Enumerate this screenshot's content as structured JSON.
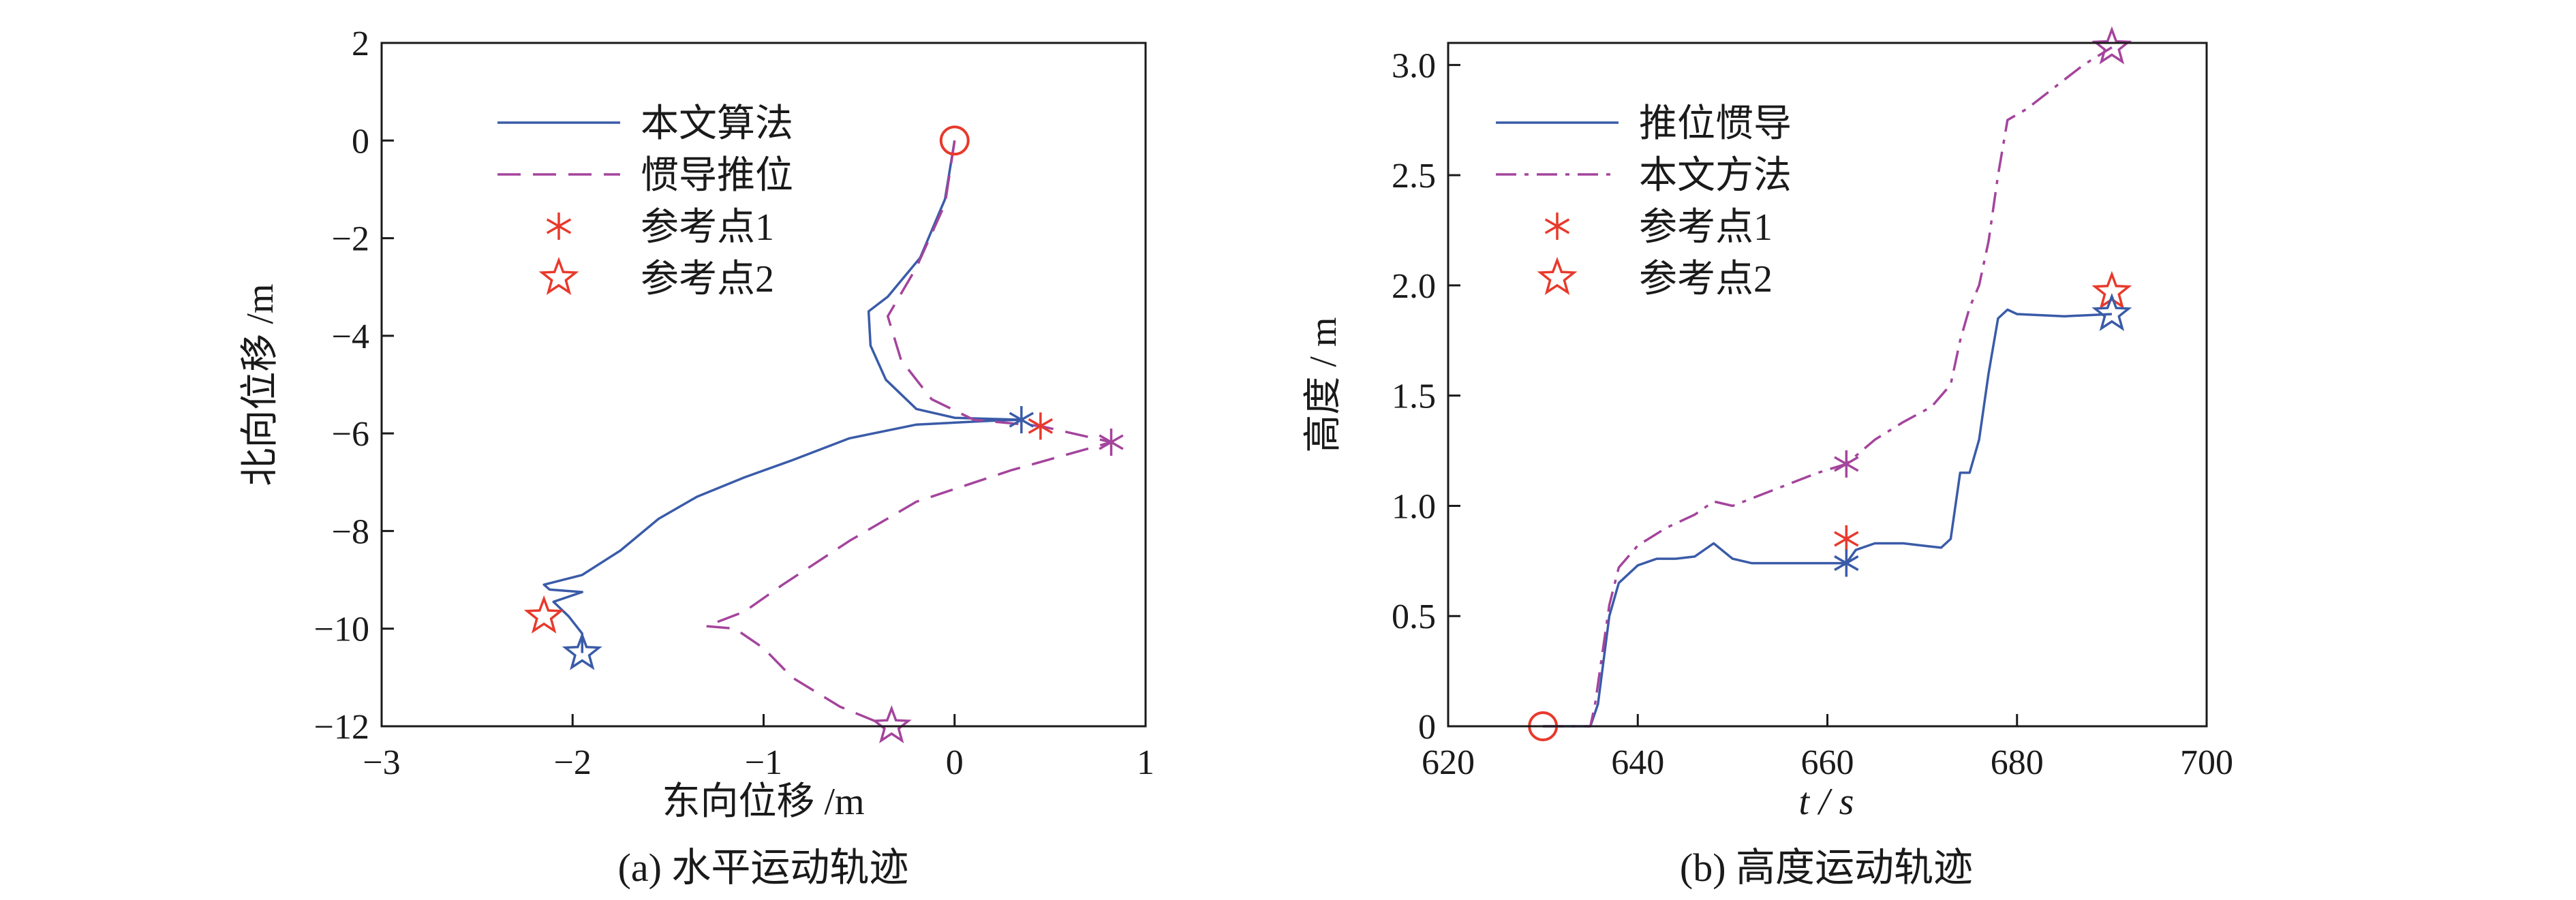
{
  "chart_data": [
    {
      "type": "line",
      "title": "",
      "caption": "(a) 水平运动轨迹",
      "xlabel": "东向位移 /m",
      "ylabel": "北向位移 /m",
      "xlim": [
        -3,
        1
      ],
      "ylim": [
        -12,
        2
      ],
      "xticks": [
        -3,
        -2,
        -1,
        0,
        1
      ],
      "xtick_labels": [
        "−3",
        "−2",
        "−1",
        "0",
        "1"
      ],
      "yticks": [
        2,
        0,
        -2,
        -4,
        -6,
        -8,
        -10,
        -12
      ],
      "ytick_labels": [
        "2",
        "0",
        "−2",
        "−4",
        "−6",
        "−8",
        "−10",
        "−12"
      ],
      "grid": false,
      "legend_position": "top-left",
      "legend": [
        {
          "label": "本文算法",
          "style": "solid-line",
          "color": "#3a5ba8"
        },
        {
          "label": "惯导推位",
          "style": "dashed-line",
          "color": "#a4449c"
        },
        {
          "label": "参考点1",
          "style": "asterisk",
          "color": "#e8392b"
        },
        {
          "label": "参考点2",
          "style": "star",
          "color": "#e8392b"
        }
      ],
      "series": [
        {
          "name": "本文算法",
          "color": "#3a5ba8",
          "dash": "solid",
          "points": [
            [
              0,
              0
            ],
            [
              -0.05,
              -1.2
            ],
            [
              -0.18,
              -2.4
            ],
            [
              -0.35,
              -3.2
            ],
            [
              -0.45,
              -3.5
            ],
            [
              -0.44,
              -4.2
            ],
            [
              -0.36,
              -4.9
            ],
            [
              -0.2,
              -5.5
            ],
            [
              0.0,
              -5.68
            ],
            [
              0.35,
              -5.72
            ],
            [
              0.2,
              -5.74
            ],
            [
              -0.2,
              -5.82
            ],
            [
              -0.55,
              -6.1
            ],
            [
              -0.85,
              -6.55
            ],
            [
              -1.1,
              -6.9
            ],
            [
              -1.35,
              -7.3
            ],
            [
              -1.55,
              -7.75
            ],
            [
              -1.75,
              -8.4
            ],
            [
              -1.95,
              -8.9
            ],
            [
              -2.15,
              -9.1
            ],
            [
              -2.12,
              -9.2
            ],
            [
              -1.95,
              -9.25
            ],
            [
              -2.1,
              -9.45
            ],
            [
              -2.02,
              -9.75
            ],
            [
              -1.95,
              -10.1
            ],
            [
              -1.95,
              -10.5
            ]
          ]
        },
        {
          "name": "惯导推位",
          "color": "#a4449c",
          "dash": "dashed",
          "points": [
            [
              0,
              0
            ],
            [
              -0.05,
              -1.3
            ],
            [
              -0.2,
              -2.6
            ],
            [
              -0.35,
              -3.6
            ],
            [
              -0.28,
              -4.5
            ],
            [
              -0.12,
              -5.3
            ],
            [
              0.1,
              -5.72
            ],
            [
              0.45,
              -5.85
            ],
            [
              0.82,
              -6.18
            ],
            [
              0.3,
              -6.75
            ],
            [
              -0.2,
              -7.4
            ],
            [
              -0.55,
              -8.2
            ],
            [
              -0.9,
              -9.1
            ],
            [
              -1.1,
              -9.65
            ],
            [
              -1.3,
              -9.95
            ],
            [
              -1.15,
              -10.0
            ],
            [
              -1.0,
              -10.4
            ],
            [
              -0.85,
              -11.0
            ],
            [
              -0.6,
              -11.6
            ],
            [
              -0.35,
              -12.0
            ]
          ]
        }
      ],
      "markers": [
        {
          "shape": "circle",
          "x": 0.0,
          "y": 0.0,
          "color": "#e8392b"
        },
        {
          "shape": "asterisk",
          "x": 0.35,
          "y": -5.72,
          "color": "#3a5ba8"
        },
        {
          "shape": "asterisk",
          "x": 0.45,
          "y": -5.85,
          "color": "#e8392b"
        },
        {
          "shape": "asterisk",
          "x": 0.82,
          "y": -6.18,
          "color": "#a4449c"
        },
        {
          "shape": "star",
          "x": -2.15,
          "y": -9.75,
          "color": "#e8392b"
        },
        {
          "shape": "star",
          "x": -1.95,
          "y": -10.5,
          "color": "#3a5ba8"
        },
        {
          "shape": "star",
          "x": -0.33,
          "y": -12.0,
          "color": "#a4449c"
        }
      ]
    },
    {
      "type": "line",
      "title": "",
      "caption": "(b) 高度运动轨迹",
      "xlabel": "t / s",
      "ylabel": "高度 / m",
      "xlim": [
        620,
        700
      ],
      "ylim": [
        0,
        3.1
      ],
      "xticks": [
        620,
        640,
        660,
        680,
        700
      ],
      "xtick_labels": [
        "620",
        "640",
        "660",
        "680",
        "700"
      ],
      "yticks": [
        0,
        0.5,
        1.0,
        1.5,
        2.0,
        2.5,
        3.0
      ],
      "ytick_labels": [
        "0",
        "0.5",
        "1.0",
        "1.5",
        "2.0",
        "2.5",
        "3.0"
      ],
      "grid": false,
      "legend_position": "top-left",
      "legend": [
        {
          "label": "推位惯导",
          "style": "solid-line",
          "color": "#3a5ba8"
        },
        {
          "label": "本文方法",
          "style": "dashdot-line",
          "color": "#a4449c"
        },
        {
          "label": "参考点1",
          "style": "asterisk",
          "color": "#e8392b"
        },
        {
          "label": "参考点2",
          "style": "star",
          "color": "#e8392b"
        }
      ],
      "series": [
        {
          "name": "推位惯导",
          "color": "#3a5ba8",
          "dash": "solid",
          "points": [
            [
              630,
              0
            ],
            [
              635,
              0
            ],
            [
              635.8,
              0.1
            ],
            [
              637,
              0.5
            ],
            [
              638,
              0.65
            ],
            [
              640,
              0.73
            ],
            [
              642,
              0.76
            ],
            [
              644,
              0.76
            ],
            [
              646,
              0.77
            ],
            [
              648,
              0.83
            ],
            [
              650,
              0.76
            ],
            [
              652,
              0.74
            ],
            [
              655,
              0.74
            ],
            [
              658,
              0.74
            ],
            [
              661,
              0.74
            ],
            [
              662,
              0.74
            ],
            [
              663,
              0.8
            ],
            [
              665,
              0.83
            ],
            [
              668,
              0.83
            ],
            [
              670,
              0.82
            ],
            [
              672,
              0.81
            ],
            [
              673,
              0.85
            ],
            [
              674,
              1.15
            ],
            [
              675,
              1.15
            ],
            [
              676,
              1.3
            ],
            [
              677,
              1.6
            ],
            [
              678,
              1.85
            ],
            [
              679,
              1.89
            ],
            [
              680,
              1.87
            ],
            [
              685,
              1.86
            ],
            [
              690,
              1.87
            ]
          ]
        },
        {
          "name": "本文方法",
          "color": "#a4449c",
          "dash": "dashdot",
          "points": [
            [
              630,
              0
            ],
            [
              635,
              0
            ],
            [
              635.5,
              0.1
            ],
            [
              637,
              0.55
            ],
            [
              638,
              0.72
            ],
            [
              640,
              0.82
            ],
            [
              643,
              0.9
            ],
            [
              646,
              0.96
            ],
            [
              648,
              1.02
            ],
            [
              650,
              1.0
            ],
            [
              653,
              1.05
            ],
            [
              656,
              1.1
            ],
            [
              659,
              1.15
            ],
            [
              662,
              1.19
            ],
            [
              665,
              1.3
            ],
            [
              668,
              1.38
            ],
            [
              671,
              1.45
            ],
            [
              673,
              1.55
            ],
            [
              674,
              1.75
            ],
            [
              675,
              1.9
            ],
            [
              676,
              2.0
            ],
            [
              677,
              2.2
            ],
            [
              678,
              2.5
            ],
            [
              679,
              2.75
            ],
            [
              681,
              2.8
            ],
            [
              684,
              2.9
            ],
            [
              687,
              3.0
            ],
            [
              690,
              3.08
            ]
          ]
        }
      ],
      "markers": [
        {
          "shape": "circle",
          "x": 630,
          "y": 0.0,
          "color": "#e8392b"
        },
        {
          "shape": "asterisk",
          "x": 662,
          "y": 1.19,
          "color": "#a4449c"
        },
        {
          "shape": "asterisk",
          "x": 662,
          "y": 0.85,
          "color": "#e8392b"
        },
        {
          "shape": "asterisk",
          "x": 662,
          "y": 0.74,
          "color": "#3a5ba8"
        },
        {
          "shape": "star",
          "x": 690,
          "y": 3.08,
          "color": "#a4449c"
        },
        {
          "shape": "star",
          "x": 690,
          "y": 1.97,
          "color": "#e8392b"
        },
        {
          "shape": "star",
          "x": 690,
          "y": 1.87,
          "color": "#3a5ba8"
        }
      ]
    }
  ]
}
